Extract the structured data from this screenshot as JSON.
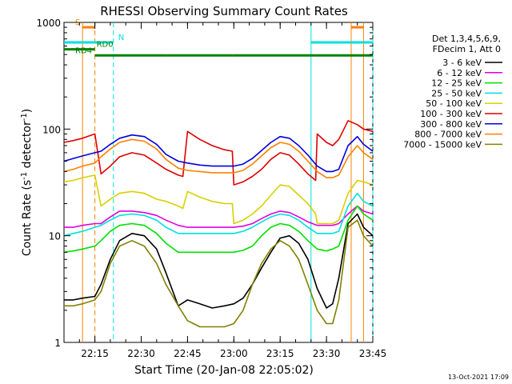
{
  "chart_data": {
    "type": "line",
    "title": "RHESSI Observing Summary Count Rates",
    "xlabel": "Start Time (20-Jan-08 22:05:02)",
    "ylabel_main": "Count Rate (s",
    "ylabel_sup1": "-1",
    "ylabel_mid": " detector",
    "ylabel_sup2": "-1",
    "ylabel_end": ")",
    "y_scale": "log",
    "ylim": [
      1,
      1000
    ],
    "xlim_minutes": [
      0,
      100
    ],
    "y_ticks": [
      {
        "value": 1,
        "label": "1"
      },
      {
        "value": 10,
        "label": "10"
      },
      {
        "value": 100,
        "label": "100"
      },
      {
        "value": 1000,
        "label": "1000"
      }
    ],
    "x_ticks": [
      {
        "minute": 10,
        "label": "22:15"
      },
      {
        "minute": 25,
        "label": "22:30"
      },
      {
        "minute": 40,
        "label": "22:45"
      },
      {
        "minute": 55,
        "label": "23:00"
      },
      {
        "minute": 70,
        "label": "23:15"
      },
      {
        "minute": 85,
        "label": "23:30"
      },
      {
        "minute": 100,
        "label": "23:45"
      }
    ],
    "legend_header": [
      "Det 1,3,4,5,6,9,",
      "FDecim 1, Att 0"
    ],
    "legend_position": "right",
    "series": [
      {
        "name": "3 - 6 keV",
        "color": "#000000",
        "x": [
          0,
          3,
          6,
          10,
          12,
          15,
          18,
          22,
          26,
          30,
          33,
          37,
          40,
          44,
          48,
          52,
          55,
          58,
          61,
          64,
          67,
          70,
          73,
          76,
          79,
          82,
          85,
          87,
          89,
          92,
          95,
          97,
          100
        ],
        "y": [
          2.5,
          2.5,
          2.6,
          2.7,
          3.5,
          6,
          9,
          10.5,
          10,
          7.5,
          4.5,
          2.2,
          2.5,
          2.3,
          2.1,
          2.2,
          2.3,
          2.6,
          3.5,
          5,
          7,
          9.5,
          10,
          8.5,
          6,
          3.2,
          2.1,
          2.3,
          4,
          13,
          16,
          12,
          10
        ]
      },
      {
        "name": "6 - 12 keV",
        "color": "#e000e0",
        "x": [
          0,
          3,
          6,
          10,
          12,
          15,
          18,
          22,
          26,
          30,
          33,
          37,
          40,
          44,
          48,
          52,
          55,
          58,
          61,
          64,
          67,
          70,
          73,
          76,
          79,
          82,
          85,
          87,
          89,
          92,
          95,
          97,
          100
        ],
        "y": [
          12,
          12,
          12.5,
          13,
          13,
          15,
          17,
          17,
          16.5,
          15.5,
          14,
          12.5,
          12,
          12,
          12,
          12,
          12,
          12.3,
          13,
          14.5,
          16,
          17,
          16.5,
          15,
          13.5,
          12.5,
          12.5,
          12.5,
          13,
          16,
          19,
          17,
          16
        ]
      },
      {
        "name": "12 - 25 keV",
        "color": "#00e000",
        "x": [
          0,
          3,
          6,
          10,
          12,
          15,
          18,
          22,
          26,
          30,
          33,
          37,
          40,
          44,
          48,
          52,
          55,
          58,
          61,
          64,
          67,
          70,
          73,
          76,
          79,
          82,
          85,
          87,
          89,
          92,
          95,
          97,
          100
        ],
        "y": [
          7,
          7.2,
          7.5,
          8,
          9,
          11,
          12.5,
          13,
          12.5,
          10.5,
          8.5,
          7,
          7,
          7,
          7,
          7,
          7,
          7.3,
          8,
          10,
          12,
          13,
          12.5,
          11,
          9,
          7.5,
          7.2,
          7.5,
          8,
          14,
          19,
          16,
          14
        ]
      },
      {
        "name": "25 - 50 keV",
        "color": "#00e0e0",
        "x": [
          0,
          3,
          6,
          10,
          12,
          15,
          18,
          22,
          26,
          30,
          33,
          37,
          40,
          44,
          48,
          52,
          55,
          58,
          61,
          64,
          67,
          70,
          73,
          76,
          79,
          82,
          85,
          87,
          89,
          92,
          95,
          97,
          100
        ],
        "y": [
          10,
          10.5,
          11,
          12,
          12.5,
          14,
          15.5,
          16,
          15.5,
          14,
          12,
          10.5,
          10.5,
          10.5,
          10.5,
          10.5,
          10.5,
          11,
          12,
          13.5,
          15,
          16,
          15.5,
          14,
          12,
          10.5,
          10.5,
          10.5,
          11,
          19,
          25,
          21,
          19
        ]
      },
      {
        "name": "50 - 100 keV",
        "color": "#d8d000",
        "x": [
          0,
          3,
          6,
          10,
          12,
          15,
          18,
          22,
          26,
          30,
          33,
          37,
          38.5,
          40,
          44,
          48,
          52,
          54.5,
          55,
          58,
          61,
          64,
          67,
          70,
          73,
          76,
          79,
          81.5,
          82,
          85,
          87,
          89,
          92,
          95,
          97,
          100
        ],
        "y": [
          32,
          33,
          35,
          37,
          19,
          22,
          25,
          26,
          25,
          22,
          21,
          19,
          18,
          26,
          23,
          21,
          20,
          20,
          13,
          14,
          16,
          19,
          24,
          30,
          29,
          24,
          20,
          16,
          13,
          13,
          13,
          14,
          25,
          33,
          32,
          30
        ]
      },
      {
        "name": "100 - 300 keV",
        "color": "#e00000",
        "x": [
          0,
          3,
          6,
          10,
          12,
          15,
          18,
          22,
          26,
          30,
          33,
          37,
          38.5,
          40,
          44,
          48,
          52,
          54.5,
          55,
          58,
          61,
          64,
          67,
          70,
          73,
          76,
          79,
          81.5,
          82,
          85,
          87,
          89,
          92,
          95,
          97,
          100
        ],
        "y": [
          75,
          78,
          82,
          90,
          38,
          45,
          55,
          60,
          57,
          48,
          42,
          37,
          36,
          95,
          80,
          70,
          64,
          62,
          30,
          32,
          36,
          42,
          52,
          60,
          57,
          47,
          38,
          33,
          90,
          75,
          70,
          80,
          120,
          110,
          100,
          95
        ]
      },
      {
        "name": "300 - 800 keV",
        "color": "#0000e0",
        "x": [
          0,
          3,
          6,
          10,
          12,
          15,
          18,
          22,
          26,
          30,
          33,
          37,
          40,
          44,
          48,
          52,
          55,
          58,
          61,
          64,
          67,
          70,
          73,
          76,
          79,
          82,
          85,
          87,
          89,
          92,
          95,
          97,
          100
        ],
        "y": [
          50,
          53,
          56,
          60,
          62,
          72,
          82,
          88,
          85,
          72,
          58,
          50,
          48,
          46,
          45,
          45,
          45,
          47,
          53,
          63,
          75,
          85,
          82,
          70,
          57,
          45,
          40,
          40,
          42,
          70,
          85,
          72,
          62
        ]
      },
      {
        "name": "800 - 7000 keV",
        "color": "#ff8000",
        "x": [
          0,
          3,
          6,
          10,
          12,
          15,
          18,
          22,
          26,
          30,
          33,
          37,
          40,
          44,
          48,
          52,
          55,
          58,
          61,
          64,
          67,
          70,
          73,
          76,
          79,
          82,
          85,
          87,
          89,
          92,
          95,
          97,
          100
        ],
        "y": [
          40,
          42,
          45,
          48,
          55,
          65,
          75,
          80,
          77,
          65,
          52,
          43,
          41,
          40,
          39,
          39,
          39,
          41,
          47,
          56,
          67,
          75,
          72,
          62,
          50,
          40,
          35,
          35,
          37,
          55,
          70,
          60,
          52
        ]
      },
      {
        "name": "7000 - 15000 keV",
        "color": "#808000",
        "x": [
          0,
          3,
          6,
          10,
          12,
          15,
          18,
          22,
          26,
          30,
          33,
          37,
          40,
          44,
          48,
          52,
          55,
          58,
          61,
          64,
          67,
          70,
          73,
          76,
          79,
          82,
          85,
          87,
          89,
          92,
          95,
          97,
          100
        ],
        "y": [
          2.2,
          2.2,
          2.3,
          2.5,
          3,
          5.5,
          8,
          9,
          8,
          5.5,
          3.5,
          2.2,
          1.6,
          1.4,
          1.4,
          1.4,
          1.5,
          2,
          3.5,
          5.5,
          7.5,
          9,
          8,
          6,
          3.5,
          2,
          1.5,
          1.5,
          2.5,
          12,
          14,
          10,
          8
        ]
      }
    ],
    "vertical_lines": [
      {
        "minute": 6,
        "color": "#ff8000",
        "style": "solid"
      },
      {
        "minute": 10,
        "color": "#ff8000",
        "style": "dashed"
      },
      {
        "minute": 16,
        "color": "#00e0e0",
        "style": "dashed"
      },
      {
        "minute": 80,
        "color": "#00e0e0",
        "style": "solid"
      },
      {
        "minute": 93,
        "color": "#ff8000",
        "style": "solid"
      },
      {
        "minute": 97,
        "color": "#ff8000",
        "style": "solid"
      },
      {
        "minute": 100,
        "color": "#00e0e0",
        "style": "dashed"
      }
    ],
    "flag_bars": [
      {
        "label": "S",
        "color": "#ff8000",
        "segments": [
          [
            6,
            10
          ],
          [
            93,
            97
          ]
        ],
        "level": 1
      },
      {
        "label": "N",
        "color": "#00e0e0",
        "segments": [
          [
            0,
            16
          ],
          [
            80,
            100
          ]
        ],
        "level": 2
      },
      {
        "label": "RD0",
        "color": "#008000",
        "segments": [
          [
            0,
            10
          ]
        ],
        "level": 3
      },
      {
        "label": "RD4",
        "color": "#008000",
        "segments": [
          [
            10,
            33
          ],
          [
            33,
            54.5
          ],
          [
            54.5,
            81.5
          ],
          [
            81.5,
            100
          ]
        ],
        "level": 4
      }
    ],
    "flag_level_values": {
      "1": 900,
      "2": 650,
      "3": 560,
      "4": 490
    }
  },
  "footer": {
    "timestamp": "13-Oct-2021 17:09"
  }
}
